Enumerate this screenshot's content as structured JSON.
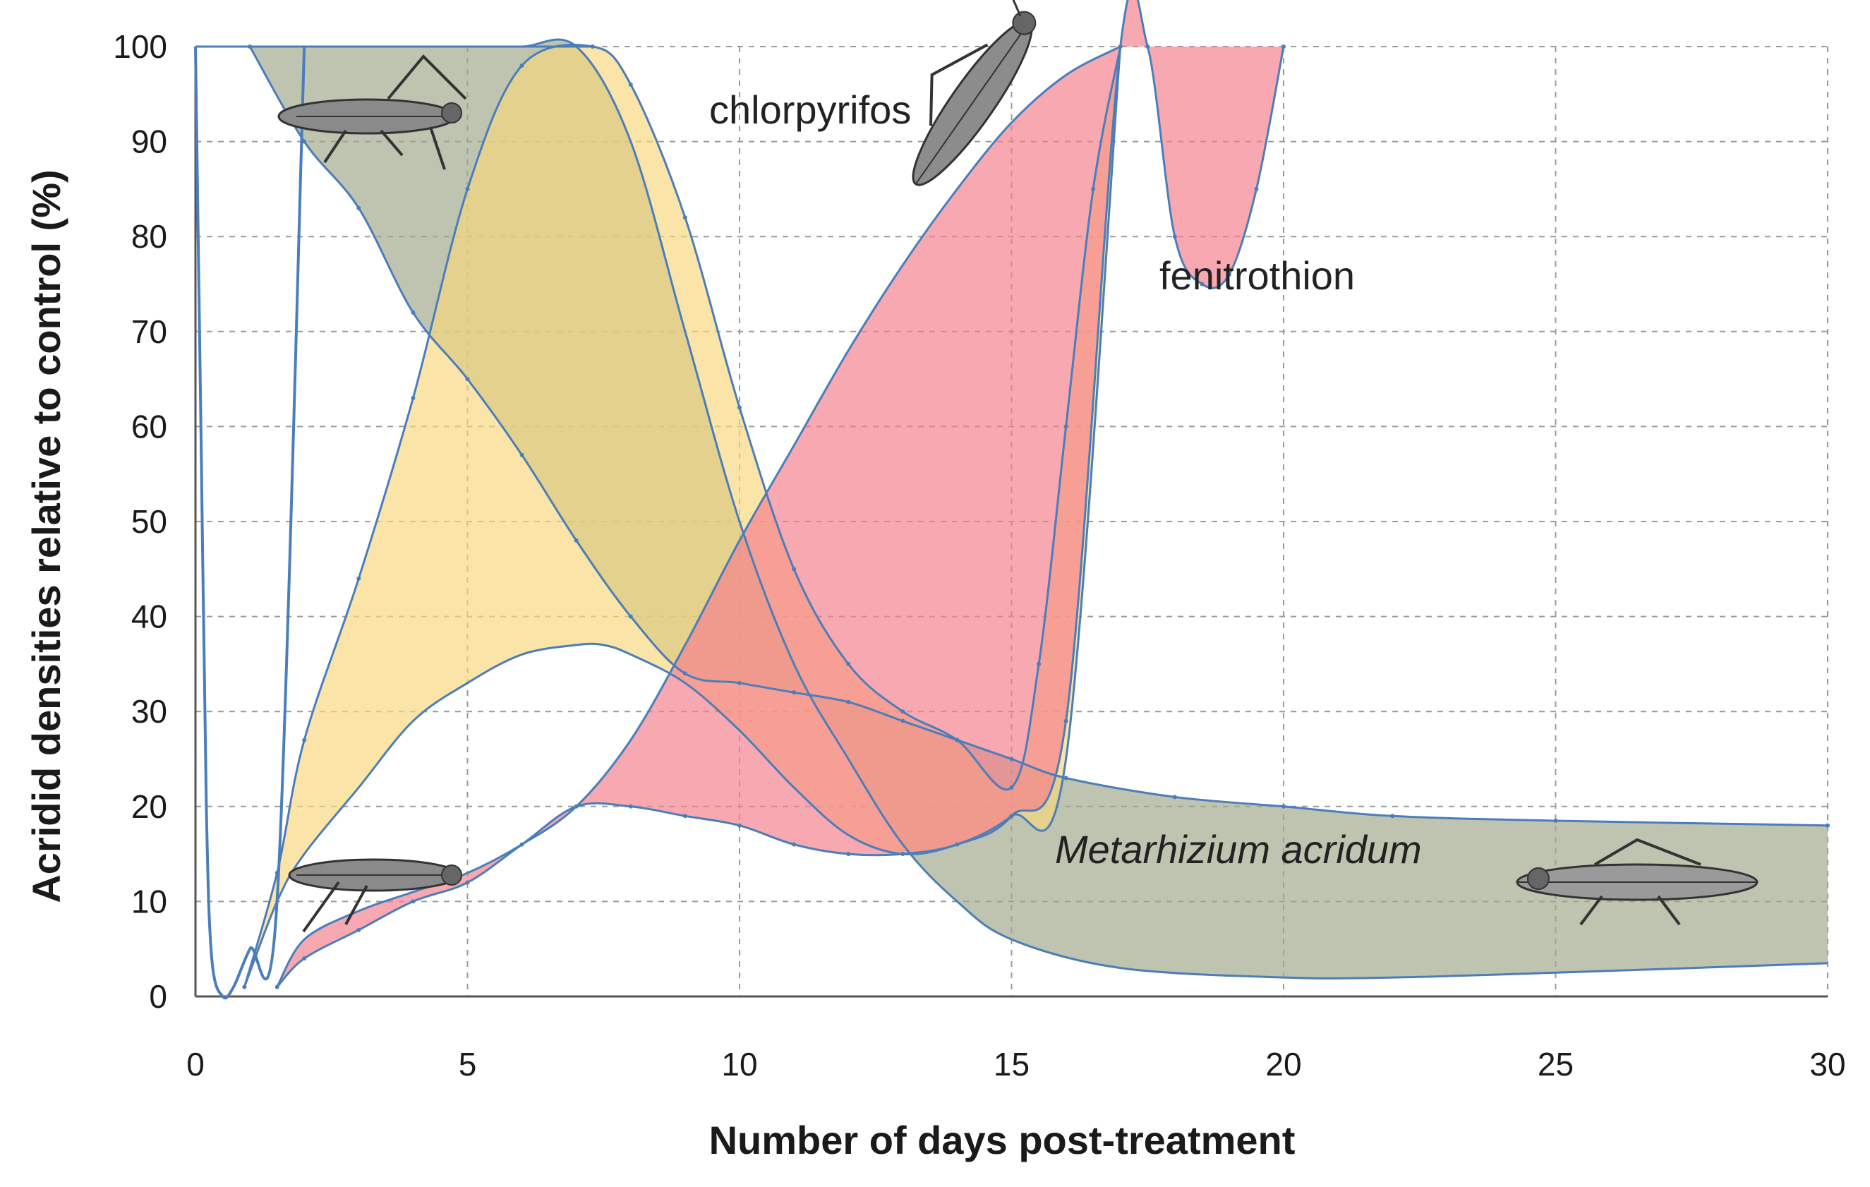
{
  "chart_data": {
    "type": "area",
    "title": "",
    "xlabel": "Number of days post-treatment",
    "ylabel": "Acridid densities relative to control (%)",
    "xlim": [
      0,
      30
    ],
    "ylim": [
      0,
      100
    ],
    "xticks": [
      0,
      5,
      10,
      15,
      20,
      25,
      30
    ],
    "yticks": [
      0,
      10,
      20,
      30,
      40,
      50,
      60,
      70,
      80,
      90,
      100
    ],
    "grid": true,
    "legend": "none",
    "colors": {
      "metarhizium": "#9fa88a",
      "chlorpyrifos": "#f7d77e",
      "fenitrothion": "#f57f8c",
      "outline": "#4a7ebb"
    },
    "series": [
      {
        "name": "chlorpyrifos",
        "label": "chlorpyrifos",
        "upper": {
          "x": [
            0.9,
            1.5,
            2,
            3,
            4,
            5,
            6,
            7.3,
            8,
            9,
            10,
            11,
            12,
            13,
            14,
            15,
            15.5,
            16,
            16.5,
            17
          ],
          "y": [
            1,
            13,
            27,
            44,
            63,
            85,
            98,
            100,
            96,
            82,
            62,
            45,
            35,
            30,
            27,
            22,
            35,
            60,
            85,
            100
          ]
        },
        "lower": {
          "x": [
            0.9,
            1.5,
            2,
            3,
            4,
            5,
            6,
            7,
            7.5,
            8,
            9,
            10,
            11,
            12,
            13,
            14,
            15,
            16,
            17
          ],
          "y": [
            1,
            10,
            15,
            22,
            29,
            33,
            36,
            37,
            37,
            36,
            33,
            28,
            22,
            17,
            15,
            16,
            19,
            25,
            100
          ]
        }
      },
      {
        "name": "fenitrothion",
        "label": "fenitrothion",
        "upper": {
          "x": [
            1.5,
            2,
            3,
            4,
            5,
            6,
            7,
            8,
            9,
            10,
            11,
            12,
            13,
            14,
            15,
            16,
            17,
            17.5,
            18,
            18.5,
            19,
            19.5,
            20
          ],
          "y": [
            1,
            4,
            7,
            10,
            12,
            16,
            20,
            20,
            19,
            18,
            16,
            15,
            15,
            16,
            19,
            29,
            100,
            100,
            80,
            75,
            76,
            85,
            100
          ]
        },
        "lower": {
          "x": [
            1.5,
            2,
            3,
            4,
            5,
            6,
            7,
            8,
            9,
            10,
            11,
            12,
            13,
            14,
            15,
            16,
            17
          ],
          "y": [
            1,
            6,
            9,
            11,
            13,
            16,
            20,
            27,
            37,
            48,
            58,
            68,
            77,
            85,
            92,
            97,
            100
          ]
        }
      },
      {
        "name": "Metarhizium acridum",
        "label": "Metarhizium acridum",
        "upper": {
          "x": [
            1,
            2,
            3,
            4,
            5,
            6,
            7,
            8,
            9,
            10,
            11,
            12,
            13,
            14,
            15,
            16,
            18,
            20,
            22,
            25,
            30
          ],
          "y": [
            100,
            90,
            83,
            72,
            65,
            57,
            48,
            40,
            34,
            33,
            32,
            31,
            29,
            27,
            25,
            23,
            21,
            20,
            19,
            18.5,
            18
          ]
        },
        "lower": {
          "x": [
            1,
            2,
            3,
            4,
            5,
            6,
            7,
            8,
            9,
            10,
            11,
            12,
            13,
            14,
            15,
            17,
            20,
            22,
            25,
            30
          ],
          "y": [
            100,
            100,
            100,
            100,
            100,
            100,
            100,
            90,
            70,
            50,
            35,
            25,
            16,
            10,
            6,
            3,
            2,
            2,
            2.5,
            3.5
          ]
        }
      }
    ],
    "early_outline": {
      "x": [
        0,
        0.1,
        0.2,
        0.3,
        0.5,
        0.7,
        1.0,
        1.5,
        2
      ],
      "y": [
        100,
        60,
        20,
        4,
        0,
        1,
        5,
        10,
        100
      ]
    }
  }
}
